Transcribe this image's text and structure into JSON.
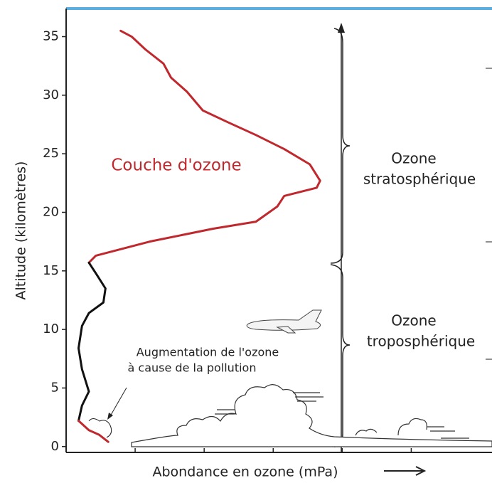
{
  "chart_data": {
    "type": "line",
    "x_label": "Abondance en ozone (mPa)",
    "y_label": "Altitude (kilomètres)",
    "xlim": [
      0,
      6.17
    ],
    "xticks": [
      1,
      2,
      3,
      4,
      5
    ],
    "ylim": [
      -0.5,
      37.4
    ],
    "yticks": [
      0,
      5,
      10,
      15,
      20,
      25,
      30,
      35
    ],
    "series": [
      {
        "color": "#c0282d",
        "x": [
          0.79,
          0.95,
          1.15,
          1.41,
          1.52,
          1.75,
          1.98,
          2.34,
          2.75,
          3.16,
          3.53,
          3.68,
          3.63,
          3.16,
          3.06,
          2.75,
          2.13,
          1.21,
          0.43,
          0.33
        ],
        "y": [
          35.5,
          35.0,
          33.9,
          32.7,
          31.5,
          30.3,
          28.7,
          27.7,
          26.6,
          25.4,
          24.1,
          22.7,
          22.1,
          21.4,
          20.5,
          19.2,
          18.6,
          17.5,
          16.3,
          15.7
        ]
      },
      {
        "color": "#111111",
        "x": [
          0.33,
          0.43,
          0.57,
          0.54,
          0.33,
          0.23,
          0.18,
          0.23,
          0.33,
          0.23,
          0.18
        ],
        "y": [
          15.7,
          14.8,
          13.5,
          12.3,
          11.4,
          10.3,
          8.4,
          6.6,
          4.7,
          3.5,
          2.2
        ]
      },
      {
        "color": "#c0282d",
        "x": [
          0.18,
          0.33,
          0.48,
          0.61
        ],
        "y": [
          2.2,
          1.4,
          1.0,
          0.4
        ]
      }
    ],
    "annotations": {
      "layer": "Couche d'ozone",
      "strato": [
        "Ozone",
        "stratosphérique"
      ],
      "tropo": [
        "Ozone",
        "troposphérique"
      ],
      "pollution": [
        "Augmentation de l'ozone",
        "à cause de la pollution"
      ]
    }
  }
}
